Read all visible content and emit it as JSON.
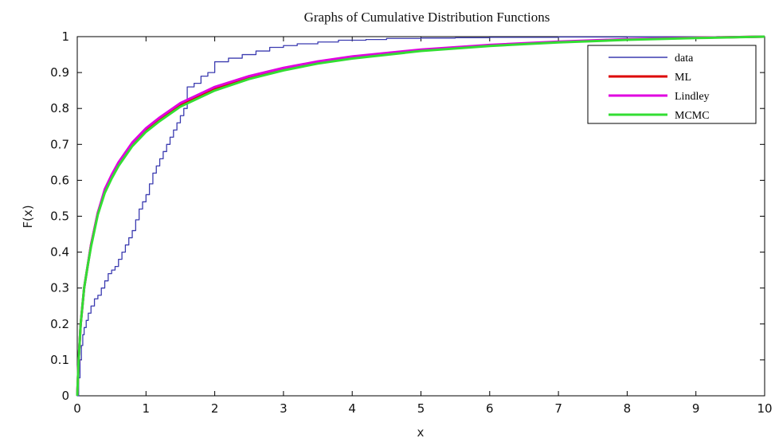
{
  "chart_data": {
    "type": "line",
    "title": "Graphs of Cumulative Distribution Functions",
    "xlabel": "x",
    "ylabel": "F(x)",
    "xlim": [
      0,
      10
    ],
    "ylim": [
      0,
      1
    ],
    "x_ticks": [
      "0",
      "1",
      "2",
      "3",
      "4",
      "5",
      "6",
      "7",
      "8",
      "9",
      "10"
    ],
    "y_ticks": [
      "0",
      "0.1",
      "0.2",
      "0.3",
      "0.4",
      "0.5",
      "0.6",
      "0.7",
      "0.8",
      "0.9",
      "1"
    ],
    "grid": false,
    "legend_position": "top-right",
    "series": [
      {
        "name": "data",
        "style": "step",
        "color": "#3b3bb0",
        "x": [
          0,
          0.02,
          0.04,
          0.06,
          0.08,
          0.1,
          0.13,
          0.16,
          0.2,
          0.25,
          0.3,
          0.35,
          0.4,
          0.45,
          0.5,
          0.55,
          0.6,
          0.65,
          0.7,
          0.75,
          0.8,
          0.85,
          0.9,
          0.95,
          1.0,
          1.05,
          1.1,
          1.15,
          1.2,
          1.25,
          1.3,
          1.35,
          1.4,
          1.45,
          1.5,
          1.55,
          1.6,
          1.7,
          1.8,
          1.9,
          2.0,
          2.2,
          2.4,
          2.6,
          2.8,
          3.0,
          3.2,
          3.5,
          3.8,
          4.2,
          4.5,
          5.0,
          5.5,
          6.0,
          7.0,
          8.0,
          9.3
        ],
        "y": [
          0,
          0.05,
          0.1,
          0.14,
          0.17,
          0.19,
          0.21,
          0.23,
          0.25,
          0.27,
          0.28,
          0.3,
          0.32,
          0.34,
          0.35,
          0.36,
          0.38,
          0.4,
          0.42,
          0.44,
          0.46,
          0.49,
          0.52,
          0.54,
          0.56,
          0.59,
          0.62,
          0.64,
          0.66,
          0.68,
          0.7,
          0.72,
          0.74,
          0.76,
          0.78,
          0.8,
          0.86,
          0.87,
          0.89,
          0.9,
          0.93,
          0.94,
          0.95,
          0.96,
          0.97,
          0.975,
          0.98,
          0.985,
          0.99,
          0.992,
          0.995,
          0.996,
          0.997,
          0.998,
          0.999,
          0.9995,
          1.0
        ]
      },
      {
        "name": "ML",
        "color": "#dd0000",
        "x": [
          0,
          0.02,
          0.05,
          0.1,
          0.15,
          0.2,
          0.3,
          0.4,
          0.5,
          0.6,
          0.8,
          1.0,
          1.2,
          1.5,
          2.0,
          2.5,
          3.0,
          3.5,
          4.0,
          5.0,
          6.0,
          7.0,
          8.0,
          9.0,
          10.0
        ],
        "y": [
          0,
          0.1,
          0.2,
          0.3,
          0.36,
          0.42,
          0.51,
          0.57,
          0.61,
          0.645,
          0.7,
          0.74,
          0.77,
          0.81,
          0.855,
          0.887,
          0.91,
          0.928,
          0.942,
          0.962,
          0.975,
          0.985,
          0.992,
          0.997,
          1.0
        ]
      },
      {
        "name": "Lindley",
        "color": "#e000e0",
        "x": [
          0,
          0.02,
          0.05,
          0.1,
          0.15,
          0.2,
          0.3,
          0.4,
          0.5,
          0.6,
          0.8,
          1.0,
          1.2,
          1.5,
          2.0,
          2.5,
          3.0,
          3.5,
          4.0,
          5.0,
          6.0,
          7.0,
          8.0,
          9.0,
          10.0
        ],
        "y": [
          0,
          0.1,
          0.2,
          0.3,
          0.36,
          0.42,
          0.51,
          0.575,
          0.615,
          0.65,
          0.705,
          0.745,
          0.775,
          0.815,
          0.86,
          0.89,
          0.913,
          0.931,
          0.945,
          0.964,
          0.977,
          0.986,
          0.993,
          0.997,
          1.0
        ]
      },
      {
        "name": "MCMC",
        "color": "#33dd33",
        "x": [
          0,
          0.02,
          0.05,
          0.1,
          0.15,
          0.2,
          0.3,
          0.4,
          0.5,
          0.6,
          0.8,
          1.0,
          1.2,
          1.5,
          2.0,
          2.5,
          3.0,
          3.5,
          4.0,
          5.0,
          6.0,
          7.0,
          8.0,
          9.0,
          10.0
        ],
        "y": [
          0,
          0.1,
          0.2,
          0.3,
          0.36,
          0.415,
          0.505,
          0.565,
          0.605,
          0.64,
          0.695,
          0.735,
          0.765,
          0.805,
          0.85,
          0.882,
          0.906,
          0.925,
          0.939,
          0.96,
          0.974,
          0.984,
          0.991,
          0.996,
          1.0
        ]
      }
    ]
  }
}
